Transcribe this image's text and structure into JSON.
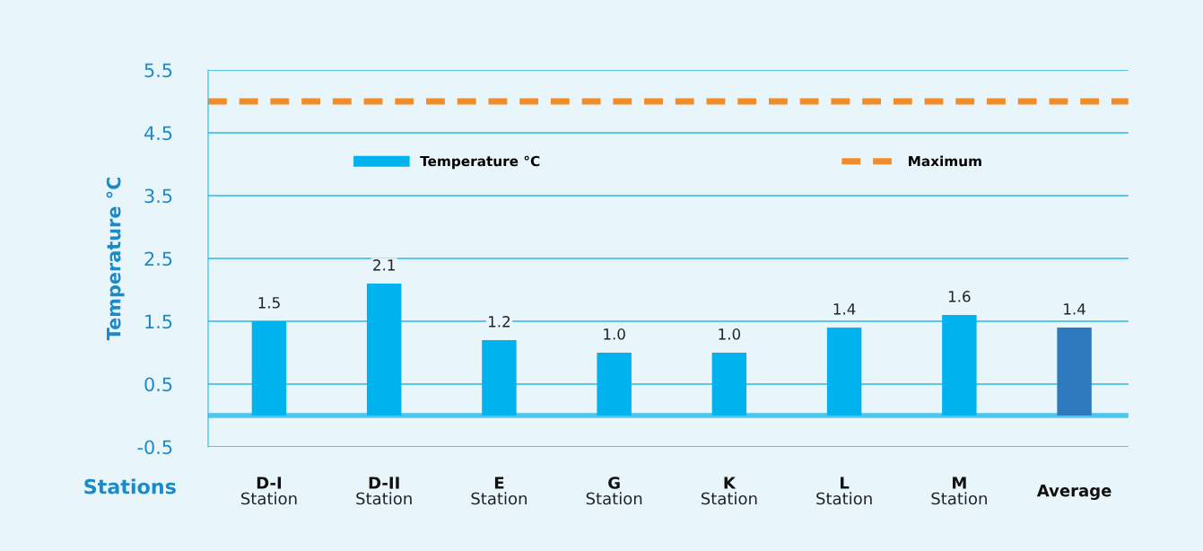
{
  "chart_data": {
    "type": "bar",
    "ylabel": "Temperature °C",
    "xlabel": "Stations",
    "categories": [
      "D-I\nStation",
      "D-II\nStation",
      "E\nStation",
      "G\nStation",
      "K\nStation",
      "L\nStation",
      "M\nStation",
      "Average"
    ],
    "series": [
      {
        "name": "Temperature °C",
        "color": "#00b2ee",
        "colors": [
          "#00b2ee",
          "#00b2ee",
          "#00b2ee",
          "#00b2ee",
          "#00b2ee",
          "#00b2ee",
          "#00b2ee",
          "#2f7abf"
        ],
        "values": [
          1.5,
          2.1,
          1.2,
          1.0,
          1.0,
          1.4,
          1.6,
          1.4
        ],
        "value_labels": [
          "1.5",
          "2.1",
          "1.2",
          "1.0",
          "1.0",
          "1.4",
          "1.6",
          "1.4"
        ]
      }
    ],
    "ylim": [
      -0.5,
      5.5
    ],
    "yticks": [
      {
        "value": -0.5,
        "label": "-0.5"
      },
      0.5,
      1.5,
      2.5,
      3.5,
      4.5,
      5.5
    ],
    "ref_lines": [
      {
        "axis": "y",
        "value": 5,
        "label": "Maximum",
        "color": "#f28c28",
        "line_style": "dashed"
      },
      {
        "axis": "y",
        "value": 0,
        "color": "#4dc6ee",
        "line_style": "solid"
      }
    ],
    "grid": "y",
    "legend": "top"
  }
}
